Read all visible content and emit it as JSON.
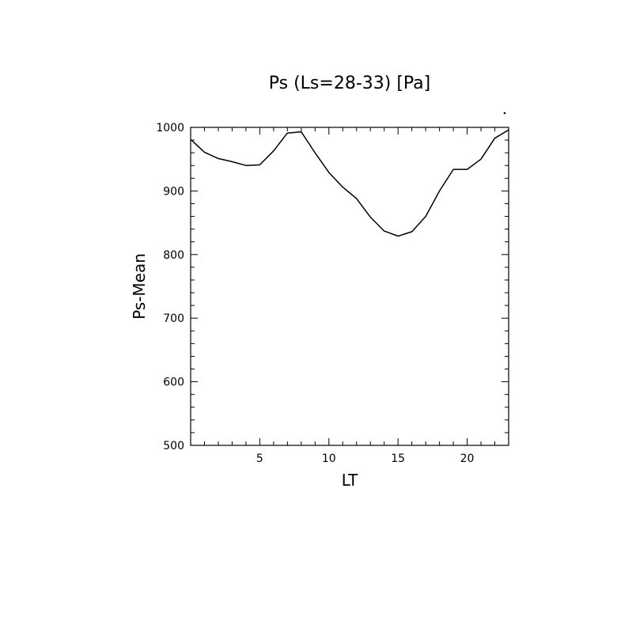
{
  "chart_data": {
    "type": "line",
    "title": "Ps (Ls=28-33) [Pa]",
    "xlabel": "LT",
    "ylabel": "Ps-Mean",
    "xlim": [
      0,
      23
    ],
    "ylim": [
      500,
      1000
    ],
    "x_ticks": [
      5,
      10,
      15,
      20
    ],
    "x_tick_labels": [
      "5",
      "10",
      "15",
      "20"
    ],
    "y_ticks": [
      500,
      600,
      700,
      800,
      900,
      1000
    ],
    "y_tick_labels": [
      "500",
      "600",
      "700",
      "800",
      "900",
      "1000"
    ],
    "grid": false,
    "series": [
      {
        "x": [
          0,
          1,
          2,
          3,
          4,
          5,
          6,
          7,
          8,
          9,
          10,
          11,
          12,
          13,
          14,
          15,
          16,
          17,
          18,
          19,
          20,
          21,
          22,
          23
        ],
        "values": [
          981,
          961,
          951,
          946,
          940,
          941,
          963,
          991,
          993,
          960,
          929,
          906,
          888,
          859,
          837,
          829,
          836,
          860,
          900,
          934,
          934,
          950,
          983,
          996
        ]
      }
    ]
  }
}
